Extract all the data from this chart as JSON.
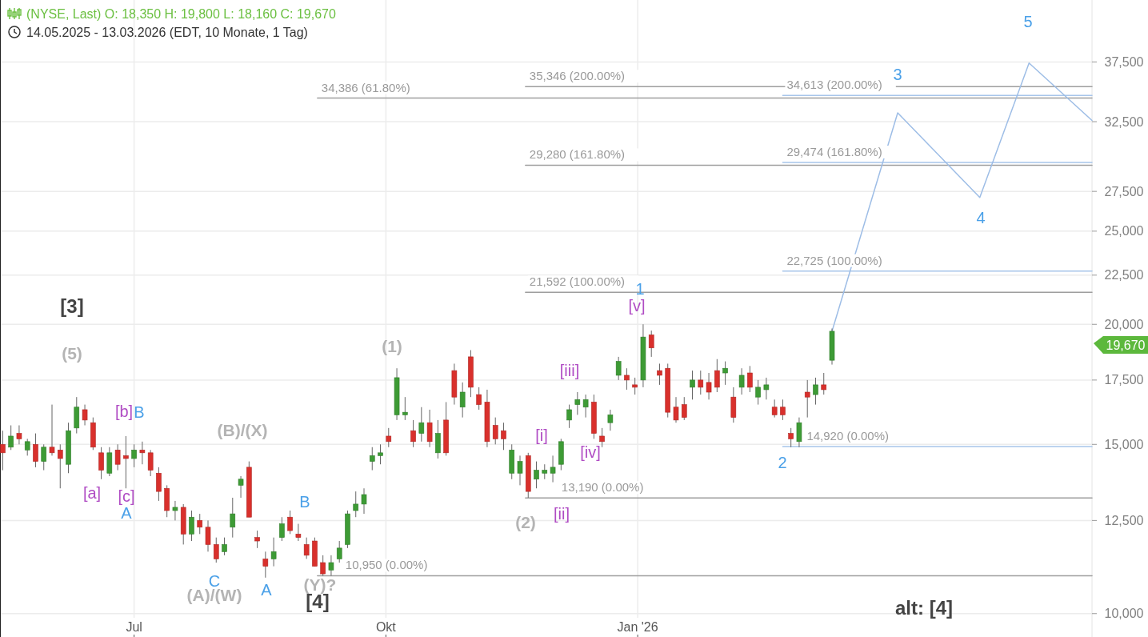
{
  "chart_data": {
    "type": "candlestick",
    "title": "(NYSE, Last)  O: 18,350  H: 19,800  L: 18,160  C: 19,670",
    "subtitle": "14.05.2025 - 13.03.2026   (EDT, 10 Monate, 1 Tag)",
    "x": [
      "2025-05-14",
      "2025-05-17",
      "2025-05-20",
      "2025-05-23",
      "2025-05-26",
      "2025-05-29",
      "2025-06-01",
      "2025-06-04",
      "2025-06-07",
      "2025-06-10",
      "2025-06-13",
      "2025-06-16",
      "2025-06-19",
      "2025-06-22",
      "2025-06-25",
      "2025-06-28",
      "2025-07-01",
      "2025-07-04",
      "2025-07-07",
      "2025-07-10",
      "2025-07-13",
      "2025-07-16",
      "2025-07-19",
      "2025-07-22",
      "2025-07-25",
      "2025-07-28",
      "2025-07-31",
      "2025-08-03",
      "2025-08-06",
      "2025-08-09",
      "2025-08-12",
      "2025-08-15",
      "2025-08-18",
      "2025-08-21",
      "2025-08-24",
      "2025-08-27",
      "2025-08-30",
      "2025-09-02",
      "2025-09-05",
      "2025-09-08",
      "2025-09-11",
      "2025-09-14",
      "2025-09-17",
      "2025-09-20",
      "2025-09-23",
      "2025-09-26",
      "2025-09-29",
      "2025-10-02",
      "2025-10-05",
      "2025-10-08",
      "2025-10-11",
      "2025-10-14",
      "2025-10-17",
      "2025-10-20",
      "2025-10-23",
      "2025-10-26",
      "2025-10-29",
      "2025-11-01",
      "2025-11-04",
      "2025-11-07",
      "2025-11-10",
      "2025-11-13",
      "2025-11-16",
      "2025-11-19",
      "2025-11-22",
      "2025-11-25",
      "2025-11-28",
      "2025-12-01",
      "2025-12-04",
      "2025-12-07",
      "2025-12-10",
      "2025-12-13",
      "2025-12-16",
      "2025-12-19",
      "2025-12-22",
      "2025-12-25",
      "2025-12-28",
      "2025-12-31",
      "2026-01-03",
      "2026-01-06",
      "2026-01-09",
      "2026-01-12",
      "2026-01-15",
      "2026-01-18",
      "2026-01-21",
      "2026-01-24",
      "2026-01-27",
      "2026-01-30",
      "2026-02-02",
      "2026-02-05",
      "2026-02-08",
      "2026-02-11",
      "2026-02-14",
      "2026-02-17",
      "2026-02-20",
      "2026-02-23",
      "2026-02-26",
      "2026-03-01",
      "2026-03-04",
      "2026-03-07",
      "2026-03-10",
      "2026-03-13"
    ],
    "ohlc": [
      [
        15000,
        15500,
        14100,
        14700
      ],
      [
        14900,
        15700,
        14800,
        15300
      ],
      [
        15400,
        15700,
        15000,
        15200
      ],
      [
        14800,
        15200,
        14600,
        15100
      ],
      [
        15000,
        15400,
        14200,
        14400
      ],
      [
        14400,
        15000,
        14100,
        14900
      ],
      [
        14900,
        16500,
        14600,
        14700
      ],
      [
        14800,
        15000,
        13500,
        14500
      ],
      [
        14300,
        15800,
        14000,
        15500
      ],
      [
        15600,
        16800,
        15400,
        16400
      ],
      [
        16300,
        16500,
        15700,
        15900
      ],
      [
        15800,
        16000,
        14800,
        14900
      ],
      [
        14700,
        14900,
        13800,
        14100
      ],
      [
        14000,
        14900,
        13900,
        14700
      ],
      [
        14800,
        15000,
        14100,
        14300
      ],
      [
        14600,
        15300,
        13500,
        14500
      ],
      [
        14500,
        15000,
        14200,
        14800
      ],
      [
        14800,
        15100,
        14300,
        14700
      ],
      [
        14700,
        14800,
        13900,
        14100
      ],
      [
        14000,
        14200,
        13100,
        13400
      ],
      [
        13500,
        13600,
        12600,
        12800
      ],
      [
        12800,
        13100,
        12500,
        12900
      ],
      [
        12900,
        13000,
        11800,
        12100
      ],
      [
        12100,
        12800,
        11900,
        12600
      ],
      [
        12500,
        12700,
        12100,
        12300
      ],
      [
        12300,
        12500,
        11600,
        11800
      ],
      [
        11800,
        12000,
        11300,
        11400
      ],
      [
        11600,
        12000,
        11500,
        11800
      ],
      [
        12300,
        13200,
        12000,
        12700
      ],
      [
        13600,
        13900,
        13200,
        13800
      ],
      [
        14200,
        14400,
        12600,
        12600
      ],
      [
        12000,
        12200,
        11700,
        11900
      ],
      [
        11400,
        11600,
        10900,
        11200
      ],
      [
        11400,
        12000,
        11200,
        11600
      ],
      [
        12000,
        12600,
        11900,
        12400
      ],
      [
        12600,
        12800,
        12100,
        12200
      ],
      [
        12100,
        12400,
        11900,
        12000
      ],
      [
        11800,
        12000,
        11400,
        11500
      ],
      [
        11900,
        12000,
        11200,
        11200
      ],
      [
        11300,
        11500,
        10950,
        11000
      ],
      [
        11100,
        11500,
        10950,
        11300
      ],
      [
        11400,
        11900,
        11300,
        11700
      ],
      [
        11800,
        12800,
        11700,
        12700
      ],
      [
        12800,
        13400,
        12600,
        13000
      ],
      [
        13000,
        13500,
        12700,
        13300
      ],
      [
        14400,
        14900,
        14100,
        14600
      ],
      [
        14600,
        15000,
        14300,
        14700
      ],
      [
        15300,
        15600,
        14900,
        15100
      ],
      [
        16100,
        18000,
        15900,
        17600
      ],
      [
        16100,
        16800,
        15900,
        16200
      ],
      [
        15500,
        15900,
        14900,
        15100
      ],
      [
        15400,
        16400,
        15100,
        15800
      ],
      [
        15800,
        16300,
        14900,
        15100
      ],
      [
        14700,
        15900,
        14500,
        15400
      ],
      [
        15900,
        16600,
        14600,
        14700
      ],
      [
        17900,
        18200,
        16500,
        16800
      ],
      [
        16400,
        17400,
        16000,
        17000
      ],
      [
        18500,
        18800,
        16800,
        17200
      ],
      [
        16900,
        17200,
        16300,
        16500
      ],
      [
        16600,
        17100,
        14900,
        15100
      ],
      [
        15700,
        16000,
        15000,
        15200
      ],
      [
        15500,
        15800,
        14800,
        15200
      ],
      [
        14000,
        15000,
        13800,
        14800
      ],
      [
        14000,
        14600,
        13600,
        14400
      ],
      [
        14600,
        14700,
        13200,
        13400
      ],
      [
        13800,
        14400,
        13500,
        14100
      ],
      [
        14000,
        14300,
        13800,
        14100
      ],
      [
        14000,
        14600,
        13700,
        14200
      ],
      [
        14300,
        15200,
        14100,
        15100
      ],
      [
        15900,
        16500,
        15600,
        16300
      ],
      [
        16500,
        17000,
        16100,
        16700
      ],
      [
        16400,
        16900,
        16000,
        16700
      ],
      [
        16600,
        16900,
        15200,
        15400
      ],
      [
        15300,
        15600,
        14900,
        15100
      ],
      [
        15800,
        16300,
        15500,
        16100
      ],
      [
        17700,
        18500,
        17500,
        18300
      ],
      [
        17700,
        18000,
        17100,
        17500
      ],
      [
        17300,
        17600,
        16900,
        17200
      ],
      [
        17500,
        20000,
        17200,
        19400
      ],
      [
        19500,
        19700,
        18500,
        18900
      ],
      [
        17900,
        18200,
        17300,
        17700
      ],
      [
        18000,
        18200,
        16000,
        16200
      ],
      [
        16400,
        16800,
        15800,
        15900
      ],
      [
        16500,
        16800,
        15900,
        16000
      ],
      [
        17200,
        17900,
        16700,
        17500
      ],
      [
        17500,
        17900,
        16900,
        17200
      ],
      [
        17400,
        17800,
        16700,
        17000
      ],
      [
        17900,
        18400,
        17000,
        17200
      ],
      [
        17800,
        18300,
        17300,
        18000
      ],
      [
        16800,
        17200,
        15800,
        16000
      ],
      [
        17200,
        18000,
        16900,
        17700
      ],
      [
        17800,
        18100,
        17000,
        17200
      ],
      [
        16800,
        17500,
        16500,
        17200
      ],
      [
        17100,
        17600,
        16700,
        17300
      ],
      [
        16400,
        16700,
        16000,
        16100
      ],
      [
        16400,
        16700,
        15900,
        16100
      ],
      [
        15400,
        15600,
        14900,
        15200
      ],
      [
        15100,
        16000,
        14900,
        15800
      ],
      [
        17000,
        17500,
        16000,
        16800
      ],
      [
        16900,
        17600,
        16500,
        17300
      ],
      [
        17300,
        17800,
        16900,
        17100
      ],
      [
        18350,
        19800,
        18160,
        19670
      ]
    ],
    "series": [
      {
        "type": "line",
        "name": "34,386 (61.80%)",
        "color": "#9e9e9e",
        "x": [
          "2025-09-06",
          "2026-06-16"
        ],
        "values": [
          34386,
          34386
        ]
      },
      {
        "type": "line",
        "name": "10,950 (0.00%)",
        "color": "#9e9e9e",
        "x": [
          "2025-09-06",
          "2026-06-16"
        ],
        "values": [
          10950,
          10950
        ]
      },
      {
        "type": "line",
        "name": "35,346 (200.00%)",
        "color": "#9e9e9e",
        "x": [
          "2025-11-21",
          "2026-06-16"
        ],
        "values": [
          35346,
          35346
        ]
      },
      {
        "type": "line",
        "name": "29,280 (161.80%)",
        "color": "#9e9e9e",
        "x": [
          "2025-11-21",
          "2026-06-16"
        ],
        "values": [
          29280,
          29280
        ]
      },
      {
        "type": "line",
        "name": "21,592 (100.00%)",
        "color": "#9e9e9e",
        "x": [
          "2025-11-21",
          "2026-06-16"
        ],
        "values": [
          21592,
          21592
        ]
      },
      {
        "type": "line",
        "name": "13,190 (0.00%)",
        "color": "#9e9e9e",
        "x": [
          "2025-11-21",
          "2026-06-16"
        ],
        "values": [
          13190,
          13190
        ]
      },
      {
        "type": "line",
        "name": "34,613 (200.00%)",
        "color": "#a7c5ea",
        "x": [
          "2026-02-23",
          "2026-06-16"
        ],
        "values": [
          34613,
          34613
        ]
      },
      {
        "type": "line",
        "name": "29,474 (161.80%)",
        "color": "#a7c5ea",
        "x": [
          "2026-02-23",
          "2026-06-16"
        ],
        "values": [
          29474,
          29474
        ]
      },
      {
        "type": "line",
        "name": "22,725 (100.00%)",
        "color": "#a7c5ea",
        "x": [
          "2026-02-23",
          "2026-06-16"
        ],
        "values": [
          22725,
          22725
        ]
      },
      {
        "type": "line",
        "name": "14,920 (0.00%)",
        "color": "#a7c5ea",
        "x": [
          "2026-02-23",
          "2026-06-16"
        ],
        "values": [
          14920,
          14920
        ]
      },
      {
        "type": "line",
        "color": "#9dbde6",
        "x": [
          "2026-03-13",
          "2026-04-06",
          "2026-05-06",
          "2026-05-24",
          "2026-06-16"
        ],
        "values": [
          19670,
          33200,
          27100,
          37400,
          32600
        ]
      }
    ],
    "annotations": [
      "[3]",
      "(5)",
      "[b]",
      "B",
      "[a]",
      "[c]",
      "A",
      "(B)/(X)",
      "C",
      "(A)/(W)",
      "A",
      "B",
      "(Y)?",
      "[4]",
      "(1)",
      "(2)",
      "[i]",
      "[ii]",
      "[iii]",
      "[iv]",
      "[v]",
      "1",
      "2",
      "3",
      "4",
      "5",
      "alt: [4]",
      "19,670"
    ],
    "xlim": [
      "2025-05-13",
      "2026-06-16"
    ],
    "xticks": [
      {
        "value": "2025-07-01",
        "label": "Jul"
      },
      {
        "value": "2025-10-01",
        "label": "Okt"
      },
      {
        "value": "2026-01-01",
        "label": "Jan '26"
      }
    ],
    "ylim": [
      9900,
      43500
    ],
    "yticks": [
      {
        "value": 10000,
        "label": "10,000"
      },
      {
        "value": 12500,
        "label": "12,500"
      },
      {
        "value": 15000,
        "label": "15,000"
      },
      {
        "value": 17500,
        "label": "17,500"
      },
      {
        "value": 20000,
        "label": "20,000"
      },
      {
        "value": 22500,
        "label": "22,500"
      },
      {
        "value": 25000,
        "label": "25,000"
      },
      {
        "value": 27500,
        "label": "27,500"
      },
      {
        "value": 32500,
        "label": "32,500"
      },
      {
        "value": 37500,
        "label": "37,500"
      }
    ],
    "log": true,
    "grid": true
  }
}
